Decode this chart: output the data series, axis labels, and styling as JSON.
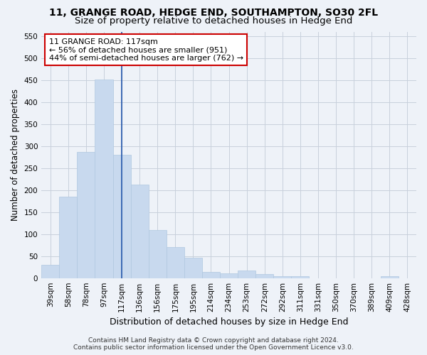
{
  "title": "11, GRANGE ROAD, HEDGE END, SOUTHAMPTON, SO30 2FL",
  "subtitle": "Size of property relative to detached houses in Hedge End",
  "xlabel": "Distribution of detached houses by size in Hedge End",
  "ylabel": "Number of detached properties",
  "categories": [
    "39sqm",
    "58sqm",
    "78sqm",
    "97sqm",
    "117sqm",
    "136sqm",
    "156sqm",
    "175sqm",
    "195sqm",
    "214sqm",
    "234sqm",
    "253sqm",
    "272sqm",
    "292sqm",
    "311sqm",
    "331sqm",
    "350sqm",
    "370sqm",
    "389sqm",
    "409sqm",
    "428sqm"
  ],
  "values": [
    30,
    185,
    287,
    452,
    281,
    212,
    109,
    71,
    46,
    14,
    11,
    18,
    9,
    5,
    5,
    0,
    0,
    0,
    0,
    5,
    0
  ],
  "bar_color": "#c8d9ee",
  "bar_edgecolor": "#b0c8e0",
  "highlight_index": 4,
  "highlight_line_color": "#2255aa",
  "annotation_line1": "11 GRANGE ROAD: 117sqm",
  "annotation_line2": "← 56% of detached houses are smaller (951)",
  "annotation_line3": "44% of semi-detached houses are larger (762) →",
  "annotation_box_edgecolor": "#cc0000",
  "annotation_box_facecolor": "white",
  "ylim": [
    0,
    560
  ],
  "yticks": [
    0,
    50,
    100,
    150,
    200,
    250,
    300,
    350,
    400,
    450,
    500,
    550
  ],
  "grid_color": "#c8d0dc",
  "background_color": "#eef2f8",
  "footer_line1": "Contains HM Land Registry data © Crown copyright and database right 2024.",
  "footer_line2": "Contains public sector information licensed under the Open Government Licence v3.0.",
  "title_fontsize": 10,
  "subtitle_fontsize": 9.5,
  "xlabel_fontsize": 9,
  "ylabel_fontsize": 8.5,
  "tick_fontsize": 7.5,
  "annotation_fontsize": 8,
  "footer_fontsize": 6.5
}
